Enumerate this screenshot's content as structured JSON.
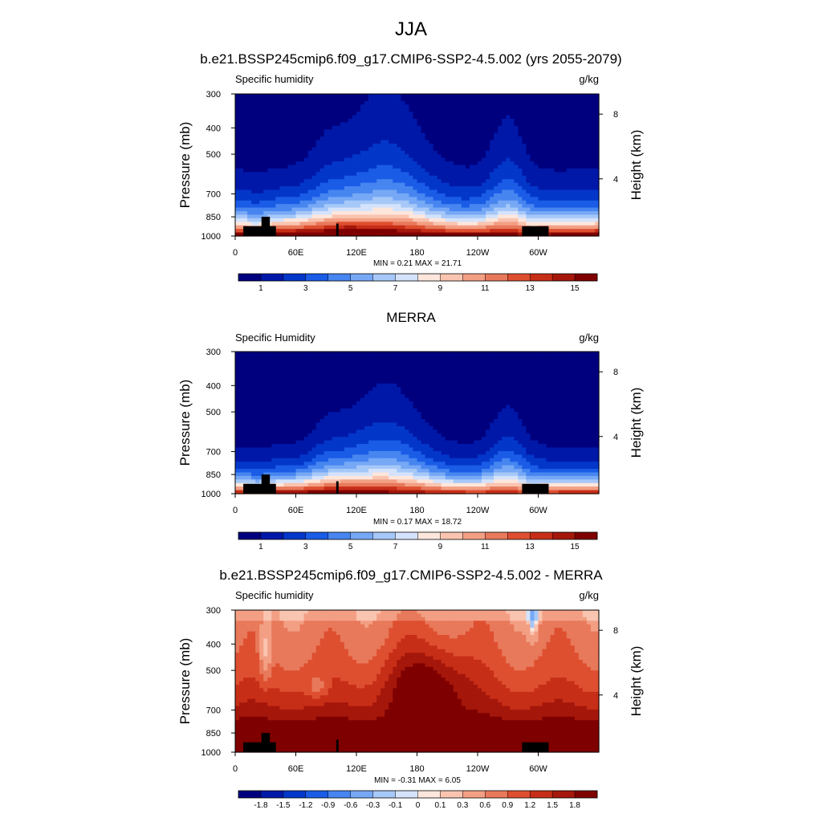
{
  "figure": {
    "season": "JJA",
    "colors": {
      "seq": [
        "#00007f",
        "#0018a8",
        "#0337c9",
        "#1a5ce6",
        "#4785f0",
        "#76a8f5",
        "#a6c8f8",
        "#d4e3fb",
        "#fde6dc",
        "#f9c4b0",
        "#f39f84",
        "#e8795b",
        "#de4f30",
        "#c72e17",
        "#a5170b",
        "#7f0000"
      ],
      "diff": [
        "#00007f",
        "#0018a8",
        "#0337c9",
        "#1a5ce6",
        "#4785f0",
        "#76a8f5",
        "#a6c8f8",
        "#d4e3fb",
        "#fde6dc",
        "#f9c4b0",
        "#f39f84",
        "#e8795b",
        "#de4f30",
        "#c72e17",
        "#a5170b",
        "#7f0000"
      ],
      "topo": "#000000"
    }
  },
  "chart_data": [
    {
      "type": "heatmap",
      "title": "b.e21.BSSP245cmip6.f09_g17.CMIP6-SSP2-4.5.002 (yrs 2055-2079)",
      "left_label": "Specific humidity",
      "units": "g/kg",
      "ylabel": "Pressure (mb)",
      "y2label": "Height (km)",
      "yticks": [
        "300",
        "400",
        "500",
        "700",
        "850",
        "1000"
      ],
      "y2ticks": [
        "8",
        "4"
      ],
      "xticks": [
        "0",
        "60E",
        "120E",
        "180",
        "120W",
        "60W"
      ],
      "stats": "MIN =   0.21  MAX =  21.71",
      "cbar_labels": [
        "1",
        "3",
        "5",
        "7",
        "9",
        "11",
        "13",
        "15"
      ],
      "levels": [
        0,
        1,
        2,
        3,
        4,
        5,
        6,
        7,
        8,
        9,
        10,
        11,
        12,
        13,
        14,
        15,
        40
      ],
      "xlim": [
        0,
        360
      ],
      "ylim": [
        1000,
        300
      ],
      "variant": 0
    },
    {
      "type": "heatmap",
      "title": "MERRA",
      "left_label": "Specific Humidity",
      "units": "g/kg",
      "ylabel": "Pressure (mb)",
      "y2label": "Height (km)",
      "yticks": [
        "300",
        "400",
        "500",
        "700",
        "850",
        "1000"
      ],
      "y2ticks": [
        "8",
        "4"
      ],
      "xticks": [
        "0",
        "60E",
        "120E",
        "180",
        "120W",
        "60W"
      ],
      "stats": "MIN =   0.17  MAX =  18.72",
      "cbar_labels": [
        "1",
        "3",
        "5",
        "7",
        "9",
        "11",
        "13",
        "15"
      ],
      "levels": [
        0,
        1,
        2,
        3,
        4,
        5,
        6,
        7,
        8,
        9,
        10,
        11,
        12,
        13,
        14,
        15,
        40
      ],
      "xlim": [
        0,
        360
      ],
      "ylim": [
        1000,
        300
      ],
      "variant": 1
    },
    {
      "type": "heatmap",
      "title": "b.e21.BSSP245cmip6.f09_g17.CMIP6-SSP2-4.5.002 - MERRA",
      "left_label": "Specific humidity",
      "units": "g/kg",
      "ylabel": "Pressure (mb)",
      "y2label": "Height (km)",
      "yticks": [
        "300",
        "400",
        "500",
        "700",
        "850",
        "1000"
      ],
      "y2ticks": [
        "8",
        "4"
      ],
      "xticks": [
        "0",
        "60E",
        "120E",
        "180",
        "120W",
        "60W"
      ],
      "stats": "MIN =  -0.31  MAX =   6.05",
      "cbar_labels": [
        "-1.8",
        "-1.5",
        "-1.2",
        "-0.9",
        "-0.6",
        "-0.3",
        "-0.1",
        "0",
        "0.1",
        "0.3",
        "0.6",
        "0.9",
        "1.2",
        "1.5",
        "1.8"
      ],
      "levels": [
        -99,
        -1.8,
        -1.5,
        -1.2,
        -0.9,
        -0.6,
        -0.3,
        -0.1,
        0,
        0.1,
        0.3,
        0.6,
        0.9,
        1.2,
        1.5,
        1.8,
        99
      ],
      "xlim": [
        0,
        360
      ],
      "ylim": [
        1000,
        300
      ],
      "variant": 2
    }
  ]
}
